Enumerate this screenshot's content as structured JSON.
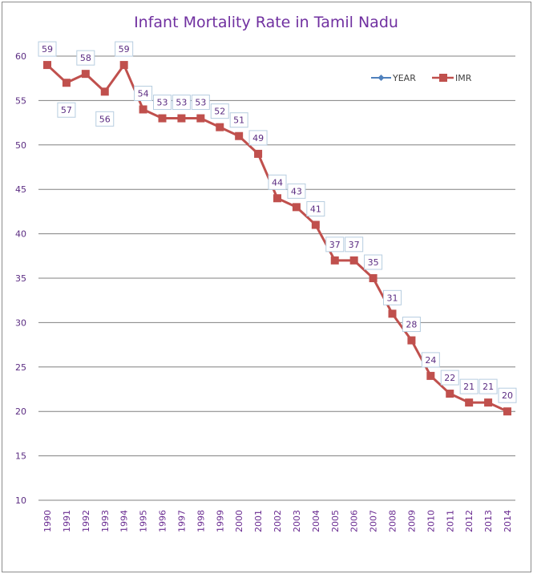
{
  "chart_data": {
    "type": "line",
    "title": "Infant Mortality Rate in Tamil Nadu",
    "xlabel": "",
    "ylabel": "",
    "categories": [
      "1990",
      "1991",
      "1992",
      "1993",
      "1994",
      "1995",
      "1996",
      "1997",
      "1998",
      "1999",
      "2000",
      "2001",
      "2002",
      "2003",
      "2004",
      "2005",
      "2006",
      "2007",
      "2008",
      "2009",
      "2010",
      "2011",
      "2012",
      "2013",
      "2014"
    ],
    "series": [
      {
        "name": "YEAR",
        "color": "#4f81bd",
        "marker": "diamond",
        "values": []
      },
      {
        "name": "IMR",
        "color": "#c0504d",
        "marker": "square",
        "values": [
          59,
          57,
          58,
          56,
          59,
          54,
          53,
          53,
          53,
          52,
          51,
          49,
          44,
          43,
          41,
          37,
          37,
          35,
          31,
          28,
          24,
          22,
          21,
          21,
          20
        ]
      }
    ],
    "ylim": [
      10,
      60
    ],
    "yticks": [
      10,
      15,
      20,
      25,
      30,
      35,
      40,
      45,
      50,
      55,
      60
    ],
    "grid": true,
    "legend": "top-right",
    "data_labels": true,
    "colors": {
      "title": "#7030a0",
      "tick_text": "#5b2c82",
      "gridline": "#808080",
      "label_box_border": "#b7cde0"
    }
  }
}
